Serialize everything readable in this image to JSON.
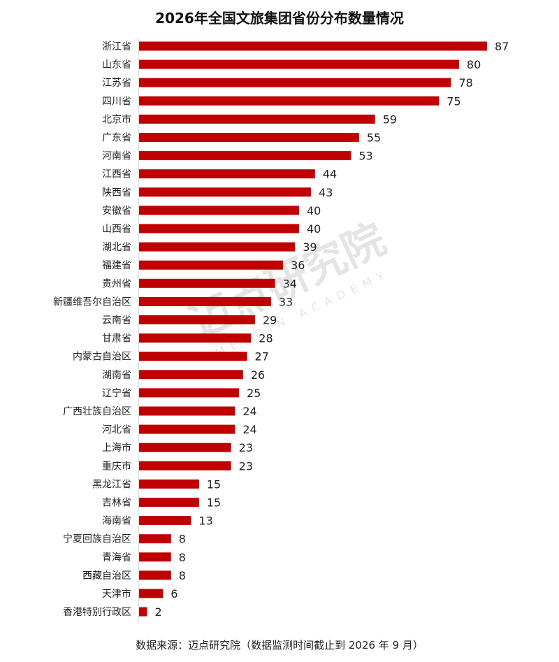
{
  "chart_data": {
    "type": "bar",
    "orientation": "horizontal",
    "title": "2026年全国文旅集团省份分布数量情况",
    "categories": [
      "浙江省",
      "山东省",
      "江苏省",
      "四川省",
      "北京市",
      "广东省",
      "河南省",
      "江西省",
      "陕西省",
      "安徽省",
      "山西省",
      "湖北省",
      "福建省",
      "贵州省",
      "新疆维吾尔自治区",
      "云南省",
      "甘肃省",
      "内蒙古自治区",
      "湖南省",
      "辽宁省",
      "广西壮族自治区",
      "河北省",
      "上海市",
      "重庆市",
      "黑龙江省",
      "吉林省",
      "海南省",
      "宁夏回族自治区",
      "青海省",
      "西藏自治区",
      "天津市",
      "香港特别行政区"
    ],
    "values": [
      87,
      80,
      78,
      75,
      59,
      55,
      53,
      44,
      43,
      40,
      40,
      39,
      36,
      34,
      33,
      29,
      28,
      27,
      26,
      25,
      24,
      24,
      23,
      23,
      15,
      15,
      13,
      8,
      8,
      8,
      6,
      2
    ],
    "xlim": [
      0,
      87
    ],
    "grid": false,
    "bar_color": "#c00000",
    "data_labels": true
  },
  "watermark": {
    "cn": "迈点研究院",
    "en": "MEADIN ACADEMY"
  },
  "footer": "数据来源：迈点研究院（数据监测时间截止到 2026 年 9 月）"
}
